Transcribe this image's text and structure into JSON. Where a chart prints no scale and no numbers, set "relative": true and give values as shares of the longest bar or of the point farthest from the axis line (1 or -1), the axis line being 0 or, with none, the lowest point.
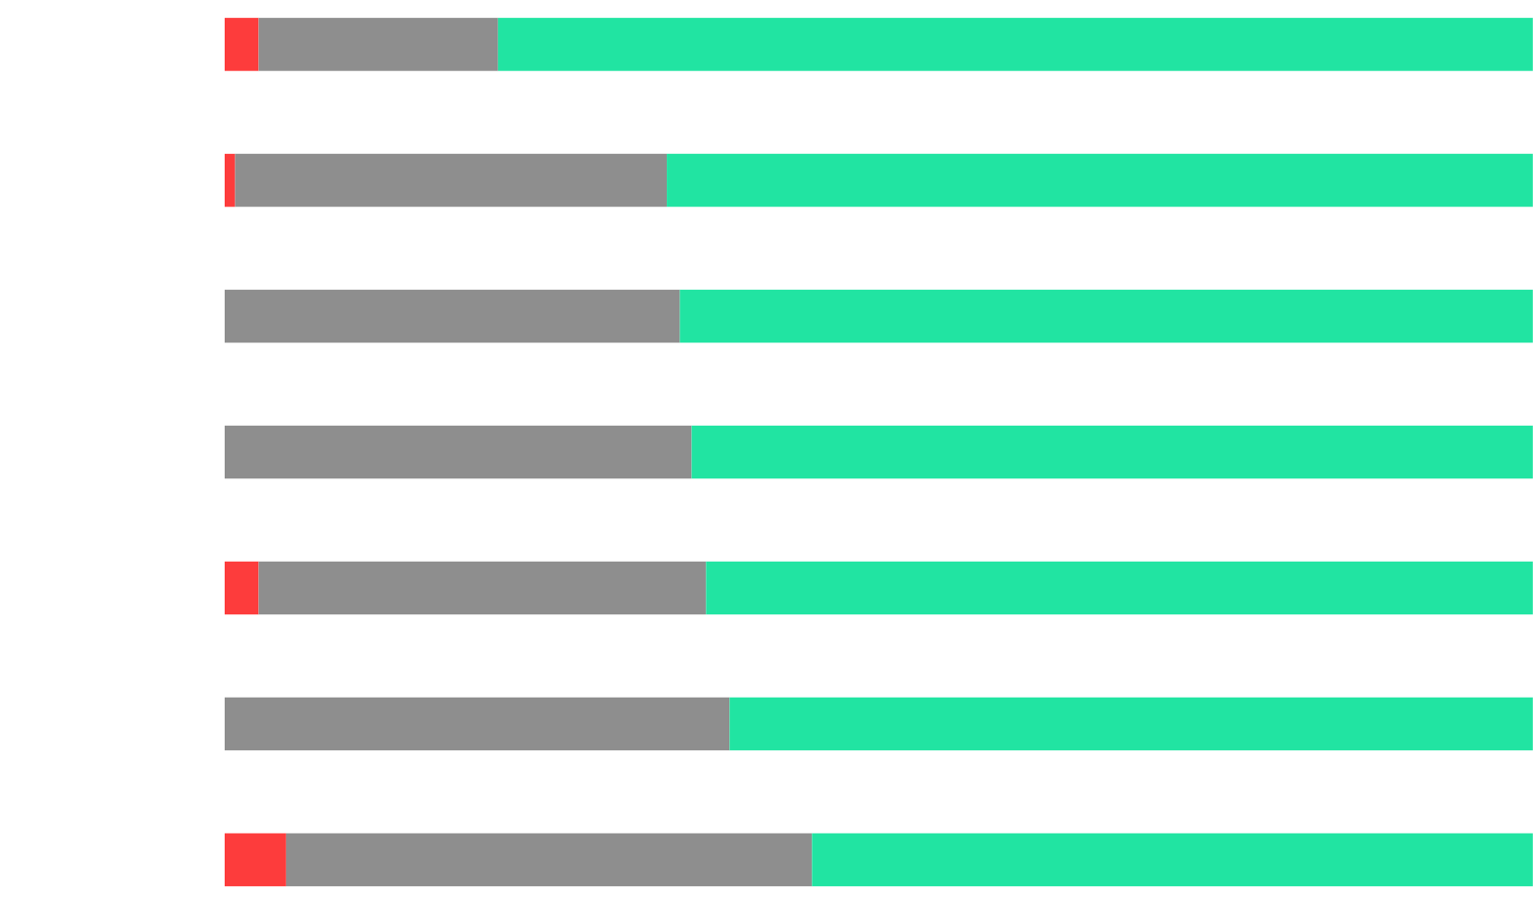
{
  "chart_data": {
    "type": "bar",
    "orientation": "horizontal",
    "stacked": true,
    "relative": true,
    "categories": [
      null,
      null,
      null,
      null,
      null,
      null,
      null
    ],
    "series": [
      {
        "color": "#fd3c3c",
        "values": [
          0.026,
          0.008,
          null,
          null,
          0.026,
          null,
          0.047
        ]
      },
      {
        "color": "#8e8e8e",
        "values": [
          0.183,
          0.33,
          0.348,
          0.357,
          0.342,
          0.386,
          0.402
        ]
      },
      {
        "color": "#21e4a2",
        "values": [
          0.791,
          0.662,
          0.652,
          0.643,
          0.632,
          0.614,
          0.551
        ]
      }
    ]
  }
}
